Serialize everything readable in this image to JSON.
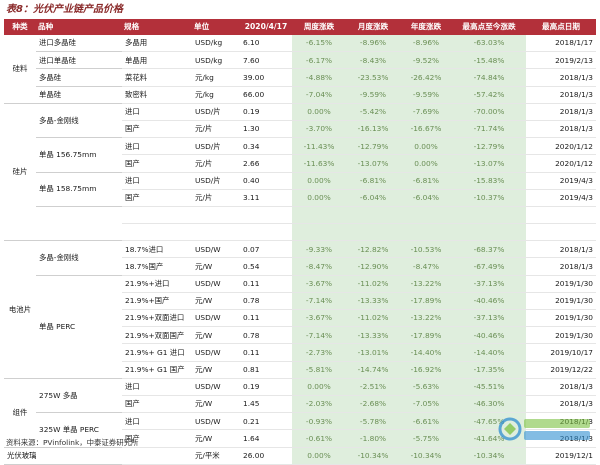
{
  "title": "表8：光伏产业链产品价格",
  "source": "资料来源：PVinfolink，中泰证券研究所",
  "headers": [
    "种类",
    "品种",
    "规格",
    "单位",
    "2020/4/17",
    "周度涨跌",
    "月度涨跌",
    "年度涨跌",
    "最高点至今涨跌",
    "最高点日期"
  ],
  "rows": [
    {
      "cat": "硅料",
      "catSpan": 4,
      "sub": "进口多晶硅",
      "spec": "多晶用",
      "unit": "USD/kg",
      "price": "6.10",
      "week": "-6.15%",
      "month": "-8.96%",
      "year": "-8.96%",
      "peak": "-63.03%",
      "date": "2018/1/17"
    },
    {
      "sub": "进口单晶硅",
      "spec": "单晶用",
      "unit": "USD/kg",
      "price": "7.60",
      "week": "-6.17%",
      "month": "-8.43%",
      "year": "-9.52%",
      "peak": "-15.48%",
      "date": "2019/2/13"
    },
    {
      "sub": "多晶硅",
      "spec": "菜花料",
      "unit": "元/kg",
      "price": "39.00",
      "week": "-4.88%",
      "month": "-23.53%",
      "year": "-26.42%",
      "peak": "-74.84%",
      "date": "2018/1/3"
    },
    {
      "sub": "单晶硅",
      "spec": "致密料",
      "unit": "元/kg",
      "price": "66.00",
      "week": "-7.04%",
      "month": "-9.59%",
      "year": "-9.59%",
      "peak": "-57.42%",
      "date": "2018/1/3"
    },
    {
      "cat": "硅片",
      "catSpan": 8,
      "sub": "多晶-金刚线",
      "subSpan": 2,
      "spec": "进口",
      "unit": "USD/片",
      "price": "0.19",
      "week": "0.00%",
      "month": "-5.42%",
      "year": "-7.69%",
      "peak": "-70.00%",
      "date": "2018/1/3"
    },
    {
      "spec": "国产",
      "unit": "元/片",
      "price": "1.30",
      "week": "-3.70%",
      "month": "-16.13%",
      "year": "-16.67%",
      "peak": "-71.74%",
      "date": "2018/1/3"
    },
    {
      "sub": "单晶 156.75mm",
      "subSpan": 2,
      "spec": "进口",
      "unit": "USD/片",
      "price": "0.34",
      "week": "-11.43%",
      "month": "-12.79%",
      "year": "0.00%",
      "peak": "-12.79%",
      "date": "2020/1/12"
    },
    {
      "spec": "国产",
      "unit": "元/片",
      "price": "2.66",
      "week": "-11.63%",
      "month": "-13.07%",
      "year": "0.00%",
      "peak": "-13.07%",
      "date": "2020/1/12"
    },
    {
      "sub": "单晶 158.75mm",
      "subSpan": 2,
      "spec": "进口",
      "unit": "USD/片",
      "price": "0.40",
      "week": "0.00%",
      "month": "-6.81%",
      "year": "-6.81%",
      "peak": "-15.83%",
      "date": "2019/4/3"
    },
    {
      "spec": "国产",
      "unit": "元/片",
      "price": "3.11",
      "week": "0.00%",
      "month": "-6.04%",
      "year": "-6.04%",
      "peak": "-10.37%",
      "date": "2019/4/3"
    },
    {
      "sub": "",
      "subSpan": 2,
      "spec": "",
      "unit": "",
      "price": "",
      "week": "",
      "month": "",
      "year": "",
      "peak": "",
      "date": ""
    },
    {
      "spec": "",
      "unit": "",
      "price": "",
      "week": "",
      "month": "",
      "year": "",
      "peak": "",
      "date": ""
    },
    {
      "cat": "电池片",
      "catSpan": 8,
      "sub": "多晶-金刚线",
      "subSpan": 2,
      "spec": "18.7%进口",
      "unit": "USD/W",
      "price": "0.07",
      "week": "-9.33%",
      "month": "-12.82%",
      "year": "-10.53%",
      "peak": "-68.37%",
      "date": "2018/1/3"
    },
    {
      "spec": "18.7%国产",
      "unit": "元/W",
      "price": "0.54",
      "week": "-8.47%",
      "month": "-12.90%",
      "year": "-8.47%",
      "peak": "-67.49%",
      "date": "2018/1/3"
    },
    {
      "sub": "单晶 PERC",
      "subSpan": 6,
      "spec": "21.9%+进口",
      "unit": "USD/W",
      "price": "0.11",
      "week": "-3.67%",
      "month": "-11.02%",
      "year": "-13.22%",
      "peak": "-37.13%",
      "date": "2019/1/30"
    },
    {
      "spec": "21.9%+国产",
      "unit": "元/W",
      "price": "0.78",
      "week": "-7.14%",
      "month": "-13.33%",
      "year": "-17.89%",
      "peak": "-40.46%",
      "date": "2019/1/30"
    },
    {
      "spec": "21.9%+双面进口",
      "unit": "USD/W",
      "price": "0.11",
      "week": "-3.67%",
      "month": "-11.02%",
      "year": "-13.22%",
      "peak": "-37.13%",
      "date": "2019/1/30"
    },
    {
      "spec": "21.9%+双面国产",
      "unit": "元/W",
      "price": "0.78",
      "week": "-7.14%",
      "month": "-13.33%",
      "year": "-17.89%",
      "peak": "-40.46%",
      "date": "2019/1/30"
    },
    {
      "spec": "21.9%+ G1 进口",
      "unit": "USD/W",
      "price": "0.11",
      "week": "-2.73%",
      "month": "-13.01%",
      "year": "-14.40%",
      "peak": "-14.40%",
      "date": "2019/10/17"
    },
    {
      "spec": "21.9%+ G1 国产",
      "unit": "元/W",
      "price": "0.81",
      "week": "-5.81%",
      "month": "-14.74%",
      "year": "-16.92%",
      "peak": "-17.35%",
      "date": "2019/12/22"
    },
    {
      "cat": "组件",
      "catSpan": 4,
      "sub": "275W 多晶",
      "subSpan": 2,
      "spec": "进口",
      "unit": "USD/W",
      "price": "0.19",
      "week": "0.00%",
      "month": "-2.51%",
      "year": "-5.63%",
      "peak": "-45.51%",
      "date": "2018/1/3"
    },
    {
      "spec": "国产",
      "unit": "元/W",
      "price": "1.45",
      "week": "-2.03%",
      "month": "-2.68%",
      "year": "-7.05%",
      "peak": "-46.30%",
      "date": "2018/1/3"
    },
    {
      "sub": "325W 单晶 PERC",
      "subSpan": 2,
      "spec": "进口",
      "unit": "USD/W",
      "price": "0.21",
      "week": "-0.93%",
      "month": "-5.78%",
      "year": "-6.61%",
      "peak": "-47.65%",
      "date": "2018/1/3"
    },
    {
      "spec": "国产",
      "unit": "元/W",
      "price": "1.64",
      "week": "-0.61%",
      "month": "-1.80%",
      "year": "-5.75%",
      "peak": "-41.64%",
      "date": "2018/1/3"
    },
    {
      "cat": "光伏玻璃",
      "catSpan": 1,
      "sub": "",
      "spec": "",
      "unit": "元/平米",
      "price": "26.00",
      "week": "0.00%",
      "month": "-10.34%",
      "year": "-10.34%",
      "peak": "-10.34%",
      "date": "2019/12/1"
    }
  ]
}
